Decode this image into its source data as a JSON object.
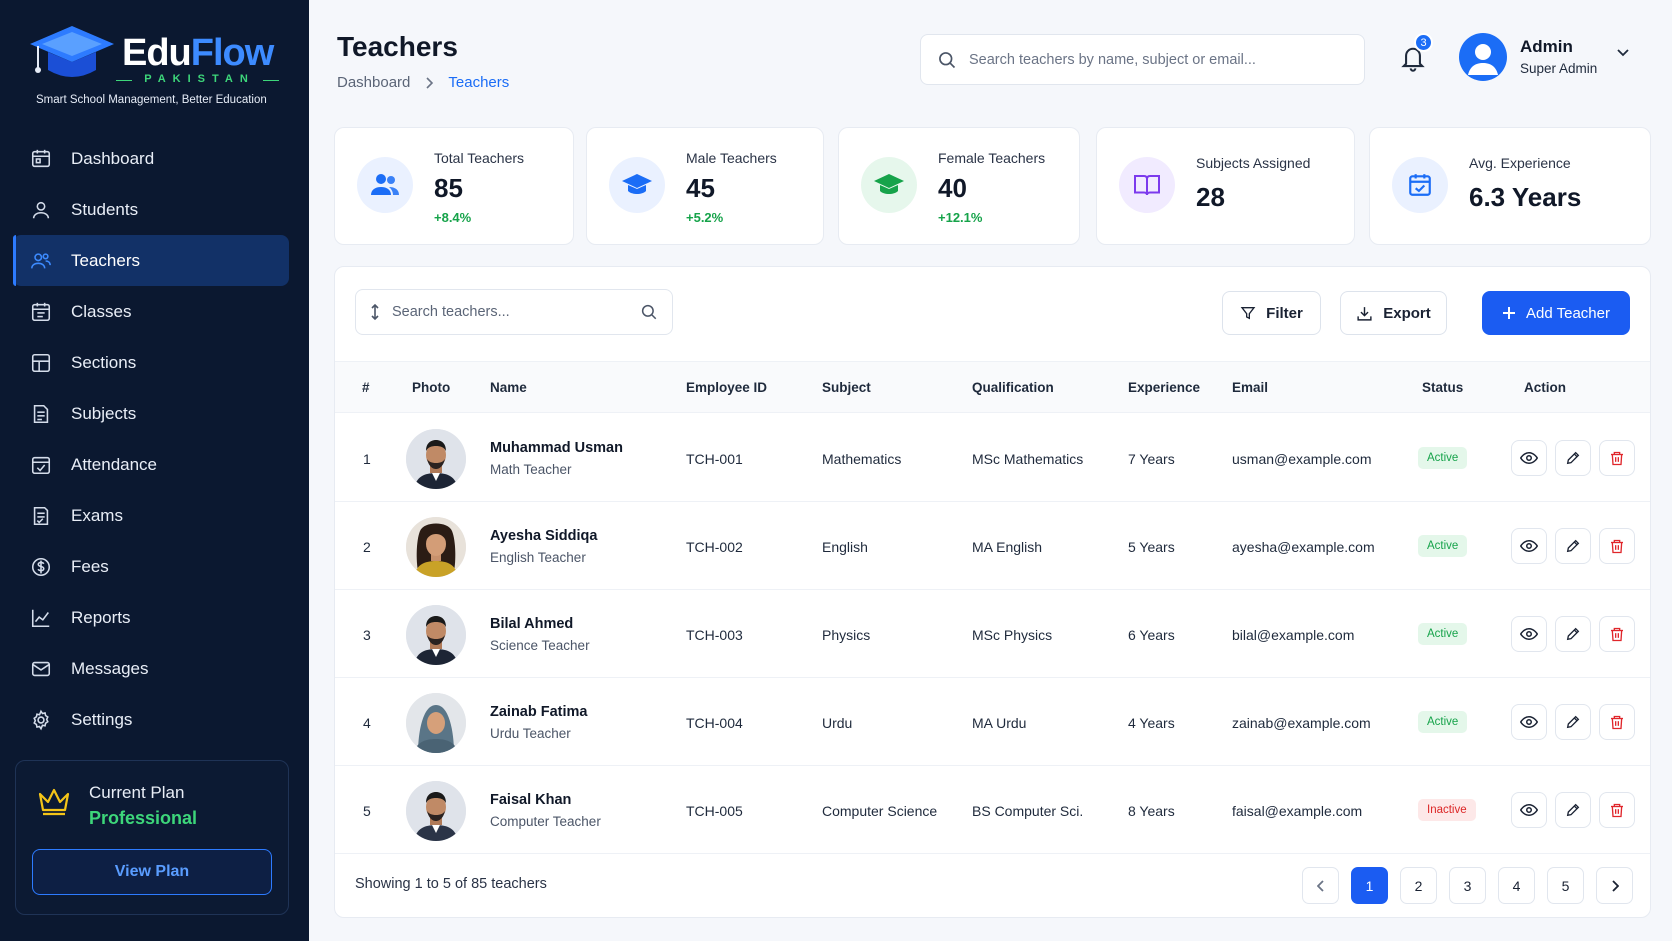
{
  "brand": {
    "name_part1": "Edu",
    "name_part2": "Flow",
    "region": "PAKISTAN",
    "tagline": "Smart School Management, Better Education"
  },
  "sidebar": {
    "items": [
      {
        "label": "Dashboard",
        "icon": "dashboard-icon"
      },
      {
        "label": "Students",
        "icon": "user-icon"
      },
      {
        "label": "Teachers",
        "icon": "users-icon",
        "active": true
      },
      {
        "label": "Classes",
        "icon": "calendar-icon"
      },
      {
        "label": "Sections",
        "icon": "sections-icon"
      },
      {
        "label": "Subjects",
        "icon": "book-icon"
      },
      {
        "label": "Attendance",
        "icon": "attendance-icon"
      },
      {
        "label": "Exams",
        "icon": "exam-icon"
      },
      {
        "label": "Fees",
        "icon": "dollar-icon"
      },
      {
        "label": "Reports",
        "icon": "chart-icon"
      },
      {
        "label": "Messages",
        "icon": "mail-icon"
      },
      {
        "label": "Settings",
        "icon": "gear-icon"
      }
    ],
    "plan": {
      "title": "Current Plan",
      "name": "Professional",
      "button": "View Plan"
    }
  },
  "header": {
    "title": "Teachers",
    "breadcrumb": {
      "root": "Dashboard",
      "current": "Teachers"
    },
    "search_placeholder": "Search teachers by name, subject or email...",
    "notifications": "3",
    "user": {
      "name": "Admin",
      "role": "Super Admin"
    }
  },
  "stats": [
    {
      "label": "Total Teachers",
      "value": "85",
      "change": "+8.4%",
      "icon": "users-icon",
      "color": "#1b6df6"
    },
    {
      "label": "Male Teachers",
      "value": "45",
      "change": "+5.2%",
      "icon": "graduation-cap-icon",
      "color": "#1b6df6"
    },
    {
      "label": "Female Teachers",
      "value": "40",
      "change": "+12.1%",
      "icon": "graduation-cap-icon",
      "color": "#16a34a"
    },
    {
      "label": "Subjects Assigned",
      "value": "28",
      "icon": "book-open-icon",
      "color": "#7c3aed"
    },
    {
      "label": "Avg. Experience",
      "value": "6.3 Years",
      "icon": "calendar-check-icon",
      "color": "#1b6df6"
    }
  ],
  "toolbar": {
    "search_placeholder": "Search teachers...",
    "filter": "Filter",
    "export": "Export",
    "add": "Add Teacher"
  },
  "table": {
    "columns": [
      "#",
      "Photo",
      "Name",
      "Employee ID",
      "Subject",
      "Qualification",
      "Experience",
      "Email",
      "Status",
      "Action"
    ],
    "rows": [
      {
        "no": "1",
        "name": "Muhammad Usman",
        "role": "Math Teacher",
        "id": "TCH-001",
        "subject": "Mathematics",
        "qualification": "MSc Mathematics",
        "experience": "7 Years",
        "email": "usman@example.com",
        "status": "Active"
      },
      {
        "no": "2",
        "name": "Ayesha Siddiqa",
        "role": "English Teacher",
        "id": "TCH-002",
        "subject": "English",
        "qualification": "MA English",
        "experience": "5 Years",
        "email": "ayesha@example.com",
        "status": "Active"
      },
      {
        "no": "3",
        "name": "Bilal Ahmed",
        "role": "Science Teacher",
        "id": "TCH-003",
        "subject": "Physics",
        "qualification": "MSc Physics",
        "experience": "6 Years",
        "email": "bilal@example.com",
        "status": "Active"
      },
      {
        "no": "4",
        "name": "Zainab Fatima",
        "role": "Urdu Teacher",
        "id": "TCH-004",
        "subject": "Urdu",
        "qualification": "MA Urdu",
        "experience": "4 Years",
        "email": "zainab@example.com",
        "status": "Active"
      },
      {
        "no": "5",
        "name": "Faisal Khan",
        "role": "Computer Teacher",
        "id": "TCH-005",
        "subject": "Computer Science",
        "qualification": "BS Computer Sci.",
        "experience": "8 Years",
        "email": "faisal@example.com",
        "status": "Inactive"
      }
    ]
  },
  "pagination": {
    "summary": "Showing 1 to 5 of 85 teachers",
    "pages": [
      "1",
      "2",
      "3",
      "4",
      "5"
    ],
    "current": "1"
  }
}
